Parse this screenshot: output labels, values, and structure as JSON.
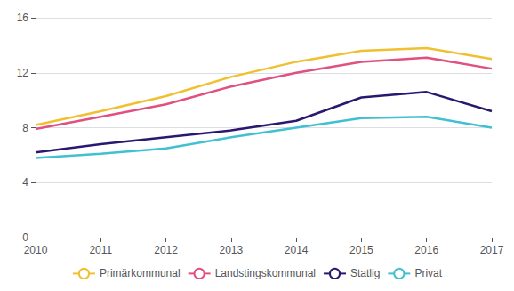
{
  "chart_data": {
    "type": "line",
    "x": [
      2010,
      2011,
      2012,
      2013,
      2014,
      2015,
      2016,
      2017
    ],
    "xlim": [
      2010,
      2017
    ],
    "xticks": [
      2010,
      2011,
      2012,
      2013,
      2014,
      2015,
      2016,
      2017
    ],
    "ylim": [
      0,
      16
    ],
    "yticks": [
      0,
      4,
      8,
      12,
      16
    ],
    "grid": true,
    "legend": "bottom",
    "series": [
      {
        "name": "Primärkommunal",
        "color": "#f0c030",
        "values": [
          8.2,
          9.2,
          10.3,
          11.7,
          12.8,
          13.6,
          13.8,
          13.0
        ]
      },
      {
        "name": "Landstingskommunal",
        "color": "#e05080",
        "values": [
          7.9,
          8.8,
          9.7,
          11.0,
          12.0,
          12.8,
          13.1,
          12.3
        ]
      },
      {
        "name": "Statlig",
        "color": "#2a1870",
        "values": [
          6.2,
          6.8,
          7.3,
          7.8,
          8.5,
          10.2,
          10.6,
          9.2
        ]
      },
      {
        "name": "Privat",
        "color": "#40c0d0",
        "values": [
          5.8,
          6.1,
          6.5,
          7.3,
          8.0,
          8.7,
          8.8,
          8.0
        ]
      }
    ]
  }
}
